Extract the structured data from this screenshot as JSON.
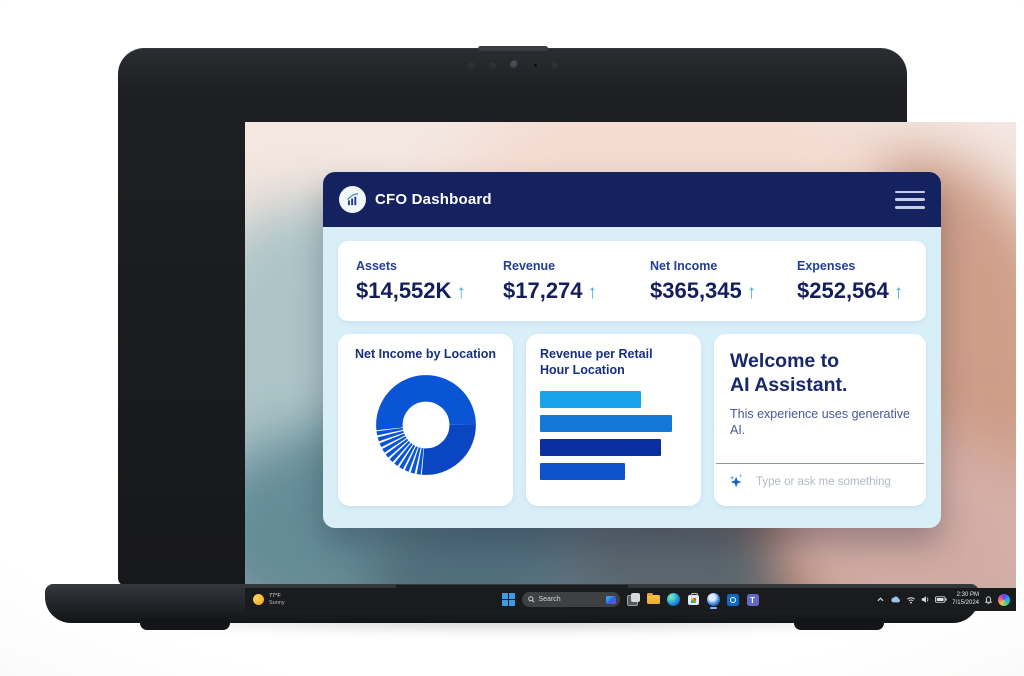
{
  "app": {
    "title": "CFO Dashboard",
    "colors": {
      "header_navy": "#14235f",
      "body_light_blue": "#d9eff8",
      "kpi_label_blue": "#233e99",
      "kpi_value_navy": "#131f5b",
      "trend_arrow_blue": "#44ace0",
      "card_title_blue": "#17307f",
      "assistant_heading_navy": "#18286d",
      "assistant_body_blue": "#47579f"
    },
    "glyphs": {
      "trend_up": "↑"
    },
    "kpis": [
      {
        "label": "Assets",
        "value": "$14,552K",
        "trend": "up"
      },
      {
        "label": "Revenue",
        "value": "$17,274",
        "trend": "up"
      },
      {
        "label": "Net Income",
        "value": "$365,345",
        "trend": "up"
      },
      {
        "label": "Expenses",
        "value": "$252,564",
        "trend": "up"
      }
    ],
    "cards": {
      "net_income": {
        "title": "Net Income by Location"
      },
      "revenue": {
        "title_lines": [
          "Revenue per Retail",
          "Hour Location"
        ]
      },
      "assistant": {
        "title_lines": [
          "Welcome to",
          "AI Assistant."
        ],
        "body": "This experience uses generative AI.",
        "input_placeholder": "Type or ask me something",
        "icons": [
          "sparkle-icon"
        ]
      }
    }
  },
  "chart_data": [
    {
      "type": "pie",
      "subtype": "donut",
      "title": "Net Income by Location",
      "legend": "none",
      "labels_shown": false,
      "values_are_percent_estimates": true,
      "start_deg": 264,
      "inner_ratio": 0.47,
      "segments": [
        {
          "value": 51.5,
          "color": "#0a54d6"
        },
        {
          "value": 26.5,
          "color": "#0a46c2"
        },
        {
          "value": 2,
          "color": "#0a54d6",
          "pad": true
        },
        {
          "value": 2,
          "color": "#0a54d6",
          "pad": true
        },
        {
          "value": 2,
          "color": "#0a54d6",
          "pad": true
        },
        {
          "value": 2,
          "color": "#0a54d6",
          "pad": true
        },
        {
          "value": 2,
          "color": "#0a54d6",
          "pad": true
        },
        {
          "value": 2,
          "color": "#0a54d6",
          "pad": true
        },
        {
          "value": 2,
          "color": "#0a54d6",
          "pad": true
        },
        {
          "value": 2,
          "color": "#0a54d6",
          "pad": true
        },
        {
          "value": 2,
          "color": "#0a54d6",
          "pad": true
        },
        {
          "value": 2,
          "color": "#0a54d6",
          "pad": true
        },
        {
          "value": 2,
          "color": "#0a54d6",
          "pad": true
        }
      ]
    },
    {
      "type": "bar",
      "orientation": "horizontal",
      "title": "Revenue per Retail Hour Location",
      "axes_shown": false,
      "labels_shown": false,
      "values_relative_pct": [
        69,
        90,
        82,
        58
      ],
      "colors": [
        "#18a3e8",
        "#1478d8",
        "#0b2fa0",
        "#0e52cb"
      ]
    }
  ],
  "taskbar": {
    "weather": {
      "temp": "77°F",
      "condition": "Sunny"
    },
    "search_label": "Search",
    "center_icons": [
      "start-icon",
      "search-pill",
      "task-view-icon",
      "file-explorer-icon",
      "edge-icon",
      "store-icon",
      "active-app-icon",
      "outlook-icon",
      "teams-icon"
    ],
    "tray_icons": [
      "chevron-up-icon",
      "onedrive-icon",
      "wifi-icon",
      "volume-icon",
      "battery-icon",
      "bell-icon",
      "copilot-icon"
    ],
    "clock": {
      "time": "2:30 PM",
      "date": "7/15/2024"
    }
  }
}
